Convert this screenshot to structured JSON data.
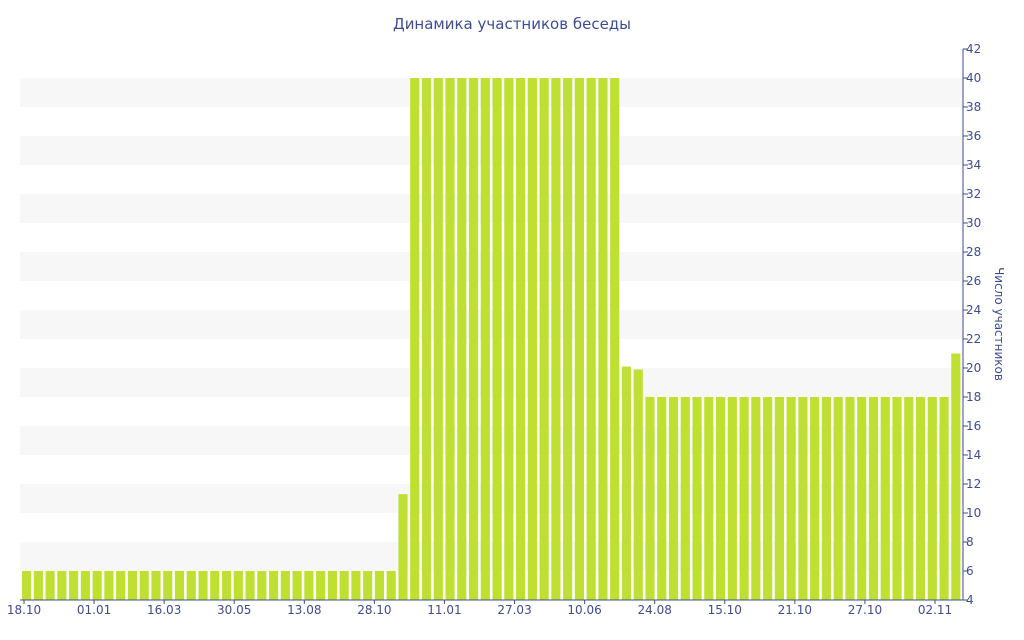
{
  "chart_data": {
    "type": "bar",
    "title": "Динамика участников беседы",
    "ylabel": "Число участников",
    "xlabel": "",
    "ylim": [
      4,
      42
    ],
    "y_ticks": [
      4,
      6,
      8,
      10,
      12,
      14,
      16,
      18,
      20,
      22,
      24,
      26,
      28,
      30,
      32,
      34,
      36,
      38,
      40,
      42
    ],
    "y_axis_position": "right",
    "x_tick_labels": [
      "18.10",
      "01.01",
      "16.03",
      "30.05",
      "13.08",
      "28.10",
      "11.01",
      "27.03",
      "10.06",
      "24.08",
      "15.10",
      "21.10",
      "27.10",
      "02.11"
    ],
    "grid": "alternating horizontal bands",
    "colors": {
      "bar": "#bfe033",
      "band": "#f7f7f7",
      "text": "#3e4d8c"
    },
    "values": [
      6,
      6,
      6,
      6,
      6,
      6,
      6,
      6,
      6,
      6,
      6,
      6,
      6,
      6,
      6,
      6,
      6,
      6,
      6,
      6,
      6,
      6,
      6,
      6,
      6,
      6,
      6,
      6,
      6,
      6,
      6,
      6,
      11.3,
      40,
      40,
      40,
      40,
      40,
      40,
      40,
      40,
      40,
      40,
      40,
      40,
      40,
      40,
      40,
      40,
      40,
      40,
      20.1,
      19.9,
      18,
      18,
      18,
      18,
      18,
      18,
      18,
      18,
      18,
      18,
      18,
      18,
      18,
      18,
      18,
      18,
      18,
      18,
      18,
      18,
      18,
      18,
      18,
      18,
      18,
      18,
      21
    ]
  }
}
